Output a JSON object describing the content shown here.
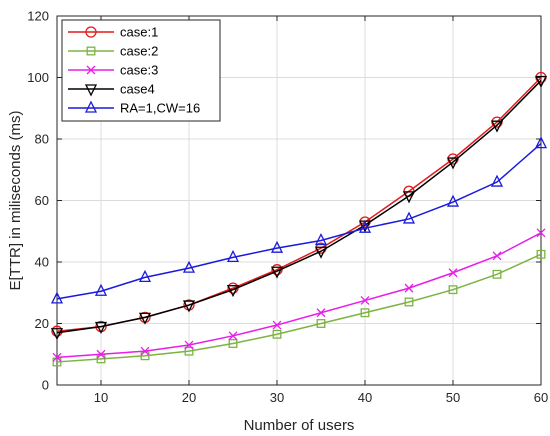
{
  "chart_data": {
    "type": "line",
    "xlabel": "Number of users",
    "ylabel": "E[TTR] in miliseconds (ms)",
    "xlim": [
      5,
      60
    ],
    "ylim": [
      0,
      120
    ],
    "x_ticks": [
      10,
      20,
      30,
      40,
      50,
      60
    ],
    "y_ticks": [
      0,
      20,
      40,
      60,
      80,
      100,
      120
    ],
    "x_tick_labels": [
      "10",
      "20",
      "30",
      "40",
      "50",
      "60"
    ],
    "y_tick_labels": [
      "0",
      "20",
      "40",
      "60",
      "80",
      "100",
      "120"
    ],
    "grid": true,
    "legend_position": "top-left",
    "x": [
      5,
      10,
      15,
      20,
      25,
      30,
      35,
      40,
      45,
      50,
      55,
      60
    ],
    "series": [
      {
        "name": "case:1",
        "color": "#e41a1c",
        "marker": "circle",
        "values": [
          17.5,
          19,
          22,
          26,
          31.5,
          37.5,
          44.5,
          53,
          63,
          73.5,
          85.5,
          100
        ]
      },
      {
        "name": "case:2",
        "color": "#7cb342",
        "marker": "square",
        "values": [
          7.5,
          8.5,
          9.5,
          11,
          13.5,
          16.5,
          20,
          23.5,
          27,
          31,
          36,
          42.5
        ]
      },
      {
        "name": "case:3",
        "color": "#e81ee8",
        "marker": "x",
        "values": [
          9,
          10,
          11,
          13,
          16,
          19.5,
          23.5,
          27.5,
          31.5,
          36.5,
          42,
          49.5
        ]
      },
      {
        "name": "case4",
        "color": "#000000",
        "marker": "triangle-down",
        "values": [
          17,
          19,
          22,
          26,
          31,
          37,
          43.5,
          52,
          61.5,
          72.5,
          84.5,
          99
        ]
      },
      {
        "name": "RA=1,CW=16",
        "color": "#1a1adc",
        "marker": "triangle-up",
        "values": [
          28,
          30.5,
          35,
          38,
          41.5,
          44.5,
          47,
          51,
          54,
          59.5,
          66,
          78.5
        ]
      }
    ]
  }
}
